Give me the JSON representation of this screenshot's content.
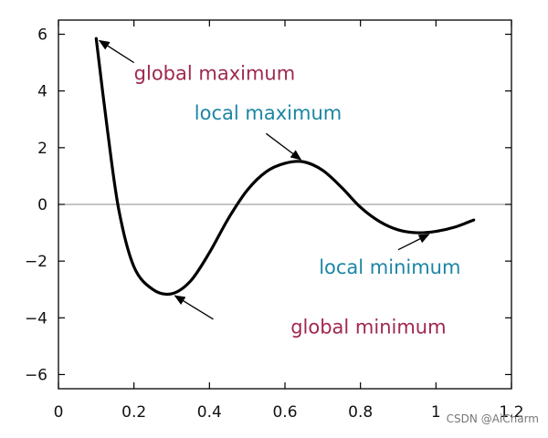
{
  "chart_data": {
    "type": "line",
    "title": "",
    "xlabel": "",
    "ylabel": "",
    "xlim": [
      0,
      1.2
    ],
    "ylim": [
      -6.5,
      6.5
    ],
    "xticks": [
      0,
      0.2,
      0.4,
      0.6,
      0.8,
      1.0,
      1.2
    ],
    "xtick_labels": [
      "0",
      "0.2",
      "0.4",
      "0.6",
      "0.8",
      "1",
      "1.2"
    ],
    "yticks": [
      -6,
      -4,
      -2,
      0,
      2,
      4,
      6
    ],
    "ytick_labels": [
      "−6",
      "−4",
      "−2",
      "0",
      "2",
      "4",
      "6"
    ],
    "zero_line": true,
    "grid": false,
    "series": [
      {
        "color": "#000000",
        "x": [
          0.1,
          0.13,
          0.16,
          0.2,
          0.25,
          0.3,
          0.35,
          0.4,
          0.45,
          0.5,
          0.55,
          0.6,
          0.65,
          0.7,
          0.75,
          0.8,
          0.85,
          0.9,
          0.95,
          1.0,
          1.05,
          1.1
        ],
        "y": [
          5.85,
          2.6,
          -0.2,
          -2.2,
          -3.0,
          -3.15,
          -2.7,
          -1.7,
          -0.5,
          0.5,
          1.15,
          1.45,
          1.5,
          1.2,
          0.6,
          -0.1,
          -0.6,
          -0.9,
          -1.0,
          -0.95,
          -0.8,
          -0.55
        ]
      }
    ],
    "annotations": [
      {
        "text": "global maximum",
        "color": "#a0294e",
        "point": [
          0.1,
          5.85
        ],
        "text_pos": [
          0.2,
          4.4
        ]
      },
      {
        "text": "local maximum",
        "color": "#1b86a4",
        "point": [
          0.65,
          1.5
        ],
        "text_pos": [
          0.36,
          3.0
        ]
      },
      {
        "text": "local minimum",
        "color": "#1b86a4",
        "point": [
          0.99,
          -1.0
        ],
        "text_pos": [
          0.69,
          -2.45
        ]
      },
      {
        "text": "global minimum",
        "color": "#a0294e",
        "point": [
          0.3,
          -3.15
        ],
        "text_pos": [
          0.615,
          -4.55
        ]
      }
    ]
  },
  "watermark": "CSDN @AiCharm"
}
